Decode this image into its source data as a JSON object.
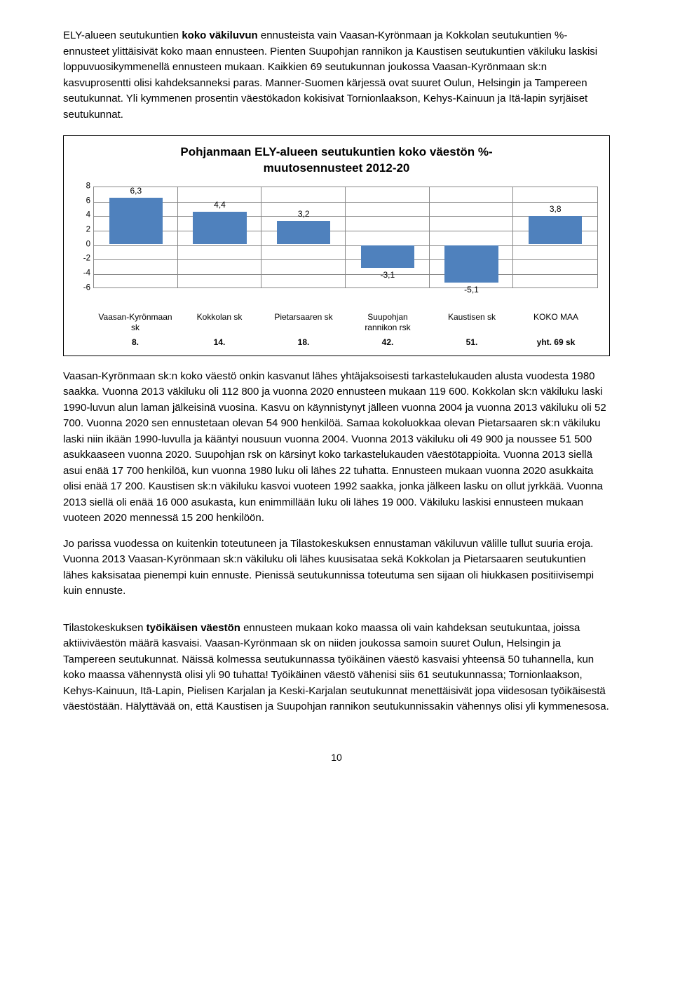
{
  "para1_a": "ELY-alueen seutukuntien ",
  "para1_b": "koko väkiluvun",
  "para1_c": " ennusteista vain Vaasan-Kyrönmaan ja Kokkolan seutukuntien %-ennusteet ylittäisivät koko maan ennusteen. Pienten Suupohjan rannikon ja Kaustisen seutukuntien väkiluku laskisi loppuvuosikymmenellä ennusteen mukaan. Kaikkien 69 seutukunnan joukossa Vaasan-Kyrönmaan sk:n kasvuprosentti olisi kahdeksanneksi paras. Manner-Suomen kärjessä ovat suuret Oulun, Helsingin ja Tampereen seutukunnat. Yli kymmenen prosentin väestökadon kokisivat Tornionlaakson, Kehys-Kainuun ja Itä-lapin syrjäiset seutukunnat.",
  "chart": {
    "title_l1": "Pohjanmaan ELY-alueen seutukuntien koko väestön %-",
    "title_l2": "muutosennusteet 2012-20",
    "ymin": -6,
    "ymax": 8,
    "ytick_step": 2,
    "bar_color": "#4f81bd",
    "grid_color": "#888888",
    "value_fontsize": 12,
    "categories": [
      {
        "label_l1": "Vaasan-Kyrönmaan",
        "label_l2": "sk",
        "value": 6.3,
        "display": "6,3",
        "rank": "8."
      },
      {
        "label_l1": "Kokkolan sk",
        "label_l2": "",
        "value": 4.4,
        "display": "4,4",
        "rank": "14."
      },
      {
        "label_l1": "Pietarsaaren sk",
        "label_l2": "",
        "value": 3.2,
        "display": "3,2",
        "rank": "18."
      },
      {
        "label_l1": "Suupohjan",
        "label_l2": "rannikon rsk",
        "value": -3.1,
        "display": "-3,1",
        "rank": "42."
      },
      {
        "label_l1": "Kaustisen sk",
        "label_l2": "",
        "value": -5.1,
        "display": "-5,1",
        "rank": "51."
      },
      {
        "label_l1": "KOKO MAA",
        "label_l2": "",
        "value": 3.8,
        "display": "3,8",
        "rank": "yht. 69 sk"
      }
    ]
  },
  "para2": "Vaasan-Kyrönmaan sk:n koko väestö onkin kasvanut lähes yhtäjaksoisesti tarkastelukauden alusta vuodesta 1980 saakka. Vuonna 2013 väkiluku oli 112 800 ja vuonna 2020 ennusteen mukaan 119 600. Kokkolan sk:n väkiluku laski 1990-luvun alun laman jälkeisinä vuosina. Kasvu on käynnistynyt jälleen vuonna 2004 ja vuonna 2013 väkiluku oli 52 700. Vuonna 2020 sen ennustetaan olevan 54 900 henkilöä. Samaa kokoluokkaa olevan Pietarsaaren sk:n väkiluku laski niin ikään 1990-luvulla ja kääntyi nousuun vuonna 2004. Vuonna 2013 väkiluku oli 49 900 ja noussee 51 500 asukkaaseen vuonna 2020. Suupohjan rsk on kärsinyt koko tarkastelukauden väestötappioita. Vuonna 2013 siellä asui enää 17 700 henkilöä, kun vuonna 1980 luku oli lähes 22 tuhatta. Ennusteen mukaan vuonna 2020 asukkaita olisi enää 17 200. Kaustisen sk:n väkiluku kasvoi vuoteen 1992 saakka, jonka jälkeen lasku on ollut jyrkkää. Vuonna 2013 siellä oli enää 16 000 asukasta, kun enimmillään luku oli lähes 19 000. Väkiluku laskisi ennusteen mukaan vuoteen 2020 mennessä 15 200 henkilöön.",
  "para3": "Jo parissa vuodessa on kuitenkin toteutuneen ja Tilastokeskuksen ennustaman väkiluvun välille tullut suuria eroja. Vuonna 2013 Vaasan-Kyrönmaan sk:n väkiluku oli lähes kuusisataa sekä Kokkolan ja Pietarsaaren seutukuntien lähes kaksisataa pienempi kuin ennuste. Pienissä seutukunnissa toteutuma sen sijaan oli hiukkasen positiivisempi kuin ennuste.",
  "para4_a": "Tilastokeskuksen ",
  "para4_b": "työikäisen väestön",
  "para4_c": " ennusteen mukaan koko maassa oli vain kahdeksan seutukuntaa, joissa aktiiviväestön määrä kasvaisi. Vaasan-Kyrönmaan sk on niiden joukossa samoin suuret Oulun, Helsingin ja Tampereen seutukunnat. Näissä kolmessa seutukunnassa työikäinen väestö kasvaisi yhteensä 50 tuhannella, kun koko maassa vähennystä olisi yli 90 tuhatta! Työikäinen väestö vähenisi siis 61 seutukunnassa; Tornionlaakson, Kehys-Kainuun, Itä-Lapin, Pielisen Karjalan ja Keski-Karjalan seutukunnat menettäisivät jopa viidesosan työikäisestä väestöstään.  Hälyttävää on, että Kaustisen ja Suupohjan rannikon seutukunnissakin vähennys olisi yli kymmenesosa.",
  "page": "10"
}
